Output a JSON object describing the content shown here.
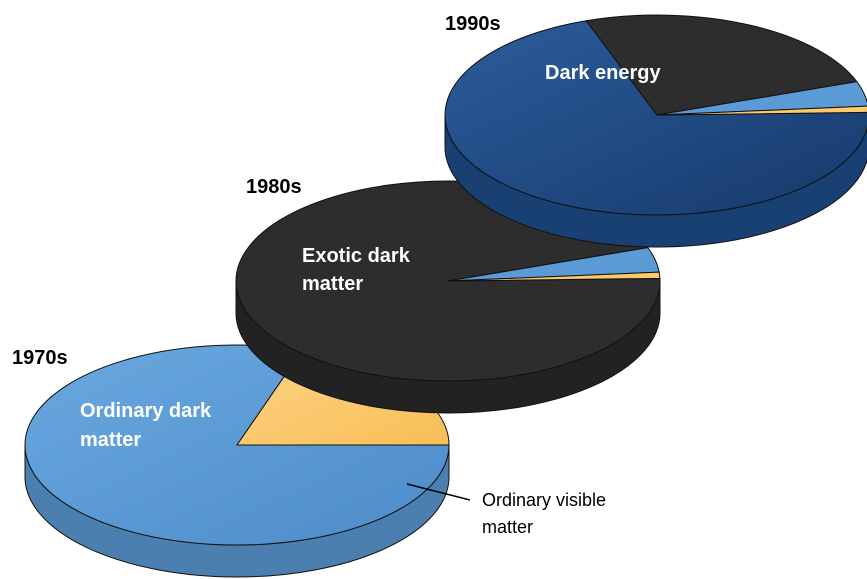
{
  "chart_data": [
    {
      "type": "pie",
      "title": "1970s",
      "slices": [
        {
          "label": "Ordinary dark matter",
          "value": 80,
          "color": "#5b9bd5"
        },
        {
          "label": "Ordinary visible matter",
          "value": 20,
          "color": "#fcc96c"
        }
      ]
    },
    {
      "type": "pie",
      "title": "1980s",
      "slices": [
        {
          "label": "Exotic dark matter",
          "value": 95,
          "color": "#2a2a2a"
        },
        {
          "label": "Ordinary dark matter",
          "value": 4,
          "color": "#5b9bd5"
        },
        {
          "label": "Ordinary visible matter",
          "value": 1,
          "color": "#fcc96c"
        }
      ]
    },
    {
      "type": "pie",
      "title": "1990s",
      "slices": [
        {
          "label": "Dark energy",
          "value": 70,
          "color": "#1f4e8c"
        },
        {
          "label": "Exotic dark matter",
          "value": 25,
          "color": "#2a2a2a"
        },
        {
          "label": "Ordinary dark matter",
          "value": 4,
          "color": "#5b9bd5"
        },
        {
          "label": "Ordinary visible matter",
          "value": 1,
          "color": "#fcc96c"
        }
      ]
    }
  ],
  "labels": {
    "era_1970s": "1970s",
    "era_1980s": "1980s",
    "era_1990s": "1990s",
    "dark_energy": "Dark energy",
    "exotic_line1": "Exotic dark",
    "exotic_line2": "matter",
    "ordinary_dark_line1": "Ordinary dark",
    "ordinary_dark_line2": "matter",
    "visible_line1": "Ordinary visible",
    "visible_line2": "matter"
  }
}
